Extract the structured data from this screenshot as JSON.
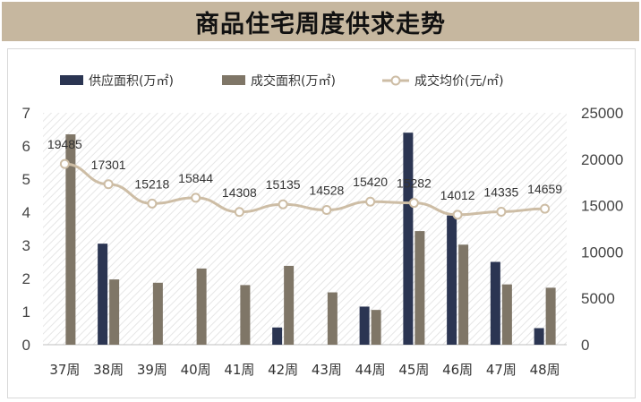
{
  "title": "商品住宅周度供求走势",
  "colors": {
    "title_bg": "#c6b79f",
    "supply": "#2b3552",
    "deal": "#7f7667",
    "price": "#cdbda5"
  },
  "legend": {
    "supply": "供应面积(万㎡)",
    "deal": "成交面积(万㎡)",
    "price": "成交均价(元/㎡)"
  },
  "chart_data": {
    "type": "bar",
    "categories": [
      "37周",
      "38周",
      "39周",
      "40周",
      "41周",
      "42周",
      "43周",
      "44周",
      "45周",
      "46周",
      "47周",
      "48周"
    ],
    "series": [
      {
        "name": "供应面积(万㎡)",
        "type": "bar",
        "axis": "left",
        "values": [
          0,
          3.05,
          0,
          0,
          0,
          0.52,
          0,
          1.15,
          6.4,
          3.9,
          2.5,
          0.5
        ]
      },
      {
        "name": "成交面积(万㎡)",
        "type": "bar",
        "axis": "left",
        "values": [
          6.35,
          1.97,
          1.87,
          2.3,
          1.8,
          2.38,
          1.58,
          1.05,
          3.43,
          3.02,
          1.82,
          1.72
        ]
      },
      {
        "name": "成交均价(元/㎡)",
        "type": "line",
        "axis": "right",
        "values": [
          19485,
          17301,
          15218,
          15844,
          14308,
          15135,
          14528,
          15420,
          15282,
          14012,
          14335,
          14659
        ]
      }
    ],
    "price_labels": [
      "19485",
      "17301",
      "15218",
      "15844",
      "14308",
      "15135",
      "14528",
      "15420",
      "15282",
      "14012",
      "14335",
      "14659"
    ],
    "y_left": {
      "min": 0,
      "max": 7,
      "ticks": [
        "0",
        "1",
        "2",
        "3",
        "4",
        "5",
        "6",
        "7"
      ]
    },
    "y_right": {
      "min": 0,
      "max": 25000,
      "ticks": [
        "0",
        "5000",
        "10000",
        "15000",
        "20000",
        "25000"
      ]
    },
    "grid": false,
    "legend_position": "top-left"
  }
}
